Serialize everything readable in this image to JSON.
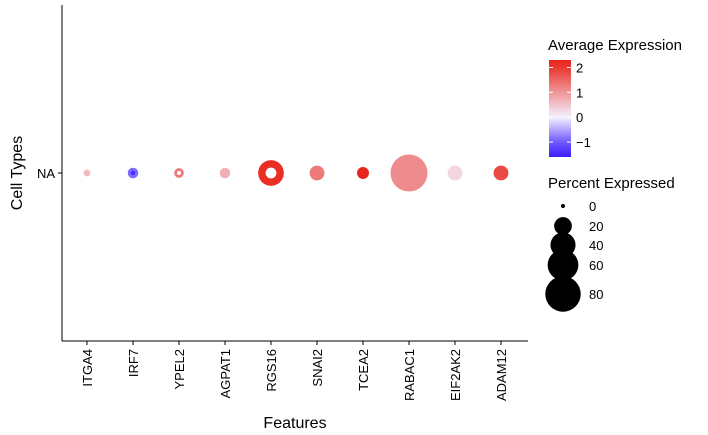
{
  "chart_data": {
    "type": "dot",
    "title": "",
    "xlabel": "Features",
    "ylabel": "Cell Types",
    "categories": [
      "ITGA4",
      "IRF7",
      "YPEL2",
      "AGPAT1",
      "RGS16",
      "SNAI2",
      "TCEA2",
      "RABAC1",
      "EIF2AK2",
      "ADAM12"
    ],
    "y_categories": [
      "NA"
    ],
    "avg_expression": [
      0.6,
      -0.9,
      1.3,
      0.7,
      2.1,
      1.3,
      2.2,
      1.1,
      0.3,
      1.8
    ],
    "percent_expressed": [
      3,
      7,
      6,
      7,
      42,
      14,
      9,
      87,
      14,
      14
    ],
    "ring_marker": [
      false,
      true,
      true,
      false,
      true,
      false,
      false,
      false,
      false,
      false
    ],
    "grid": false,
    "color_legend": {
      "title": "Average Expression",
      "ticks": [
        2,
        1,
        0,
        -1
      ],
      "tick_labels": [
        "2",
        "1",
        "0",
        "−1"
      ],
      "range": [
        -1.6,
        2.3
      ],
      "colors": {
        "low": "#3b1cff",
        "mid": "#f4f2ff",
        "high": "#e8251b"
      }
    },
    "size_legend": {
      "title": "Percent Expressed",
      "values": [
        0,
        20,
        40,
        60,
        80
      ],
      "labels": [
        "0",
        "20",
        "40",
        "60",
        "80"
      ]
    },
    "legend_position": "right"
  }
}
